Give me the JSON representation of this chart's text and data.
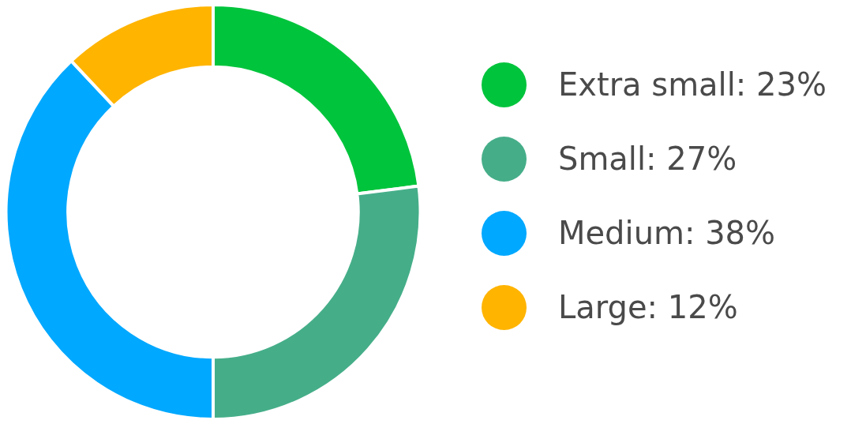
{
  "chart_data": {
    "type": "donut",
    "categories": [
      "Extra small",
      "Small",
      "Medium",
      "Large"
    ],
    "values": [
      23,
      27,
      38,
      12
    ],
    "value_labels": [
      "23%",
      "27%",
      "38%",
      "12%"
    ],
    "colors": [
      "#00c43c",
      "#45ae89",
      "#00a8ff",
      "#ffb400"
    ],
    "legend": "right"
  }
}
